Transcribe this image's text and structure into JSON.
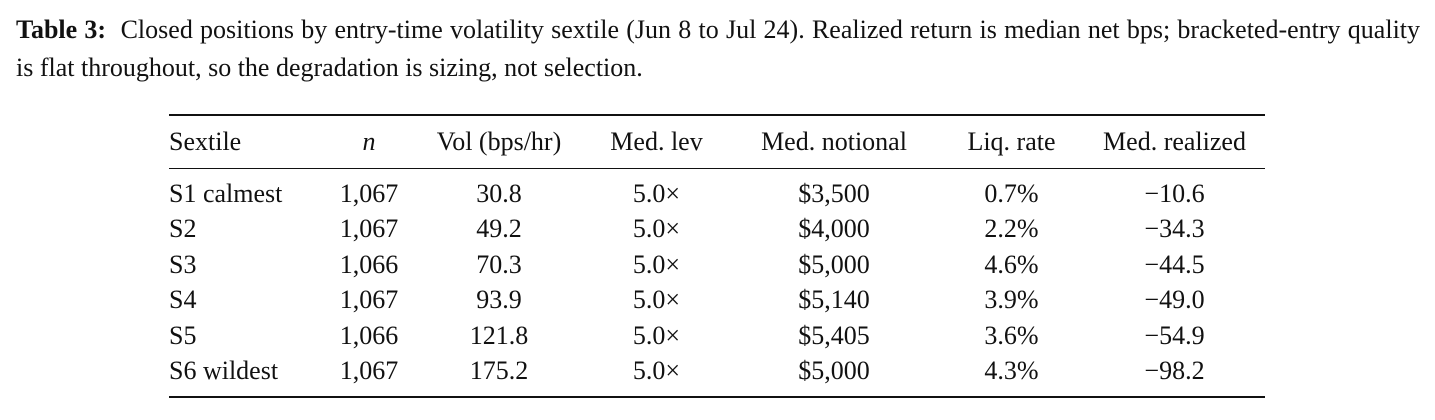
{
  "caption": {
    "label": "Table 3:",
    "text": "Closed positions by entry-time volatility sextile (Jun 8 to Jul 24).  Realized return is median net bps; bracketed-entry quality is flat throughout, so the degradation is sizing, not selection."
  },
  "table": {
    "headers": [
      "Sextile",
      "n",
      "Vol (bps/hr)",
      "Med. lev",
      "Med. notional",
      "Liq. rate",
      "Med. realized"
    ],
    "rows": [
      [
        "S1 calmest",
        "1,067",
        "30.8",
        "5.0×",
        "$3,500",
        "0.7%",
        "−10.6"
      ],
      [
        "S2",
        "1,067",
        "49.2",
        "5.0×",
        "$4,000",
        "2.2%",
        "−34.3"
      ],
      [
        "S3",
        "1,066",
        "70.3",
        "5.0×",
        "$5,000",
        "4.6%",
        "−44.5"
      ],
      [
        "S4",
        "1,067",
        "93.9",
        "5.0×",
        "$5,140",
        "3.9%",
        "−49.0"
      ],
      [
        "S5",
        "1,066",
        "121.8",
        "5.0×",
        "$5,405",
        "3.6%",
        "−54.9"
      ],
      [
        "S6 wildest",
        "1,067",
        "175.2",
        "5.0×",
        "$5,000",
        "4.3%",
        "−98.2"
      ]
    ]
  }
}
